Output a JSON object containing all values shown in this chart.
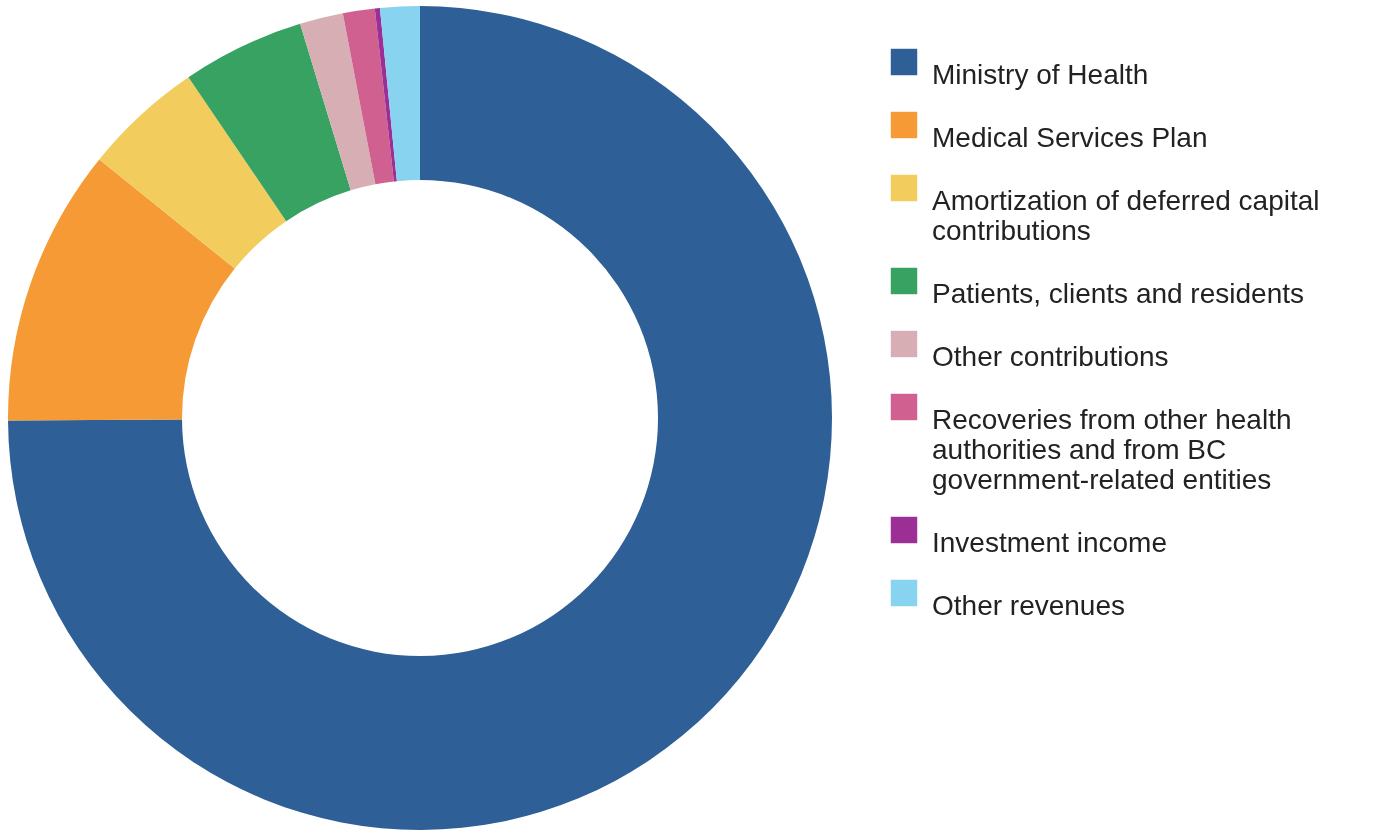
{
  "chart_data": {
    "type": "donut",
    "categories": [
      "Ministry of Health",
      "Medical Services Plan",
      "Amortization of deferred capital contributions",
      "Patients, clients and residents",
      "Other contributions",
      "Recoveries from other health authorities and from BC government-related entities",
      "Investment income",
      "Other revenues"
    ],
    "values": [
      74.9,
      10.9,
      4.7,
      4.8,
      1.7,
      1.25,
      0.2,
      1.55
    ],
    "colors": [
      "#2e5f97",
      "#f59a35",
      "#f2cd5e",
      "#38a263",
      "#d8aeb5",
      "#d0608f",
      "#9b2f95",
      "#87d3f0"
    ],
    "legend": "right"
  }
}
